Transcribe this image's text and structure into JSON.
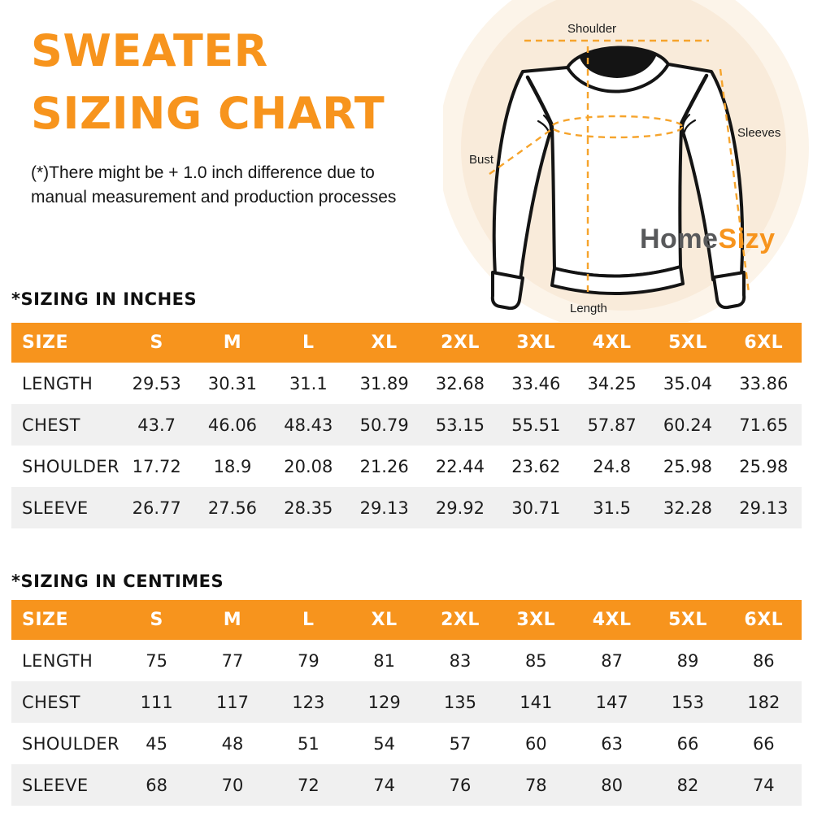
{
  "header": {
    "title_line1": "SWEATER",
    "title_line2": "SIZING CHART",
    "disclaimer_line1": "(*)There might be + 1.0 inch difference due to",
    "disclaimer_line2": "manual measurement and production processes"
  },
  "diagram": {
    "labels": {
      "shoulder": "Shoulder",
      "sleeves": "Sleeves",
      "bust": "Bust",
      "length": "Length"
    }
  },
  "logo": {
    "part1": "Home",
    "part2": "Sizy"
  },
  "colors": {
    "accent_orange": "#F7941D",
    "dash_orange": "#F6A42C",
    "stripe_gray": "#F0F0F0",
    "logo_gray": "#58595B",
    "circle_inner": "#F9EBDA",
    "circle_outer": "#FCF4E9"
  },
  "tables": [
    {
      "title": "*SIZING IN INCHES",
      "columns": [
        "SIZE",
        "S",
        "M",
        "L",
        "XL",
        "2XL",
        "3XL",
        "4XL",
        "5XL",
        "6XL"
      ],
      "rows": [
        {
          "label": "LENGTH",
          "values": [
            "29.53",
            "30.31",
            "31.1",
            "31.89",
            "32.68",
            "33.46",
            "34.25",
            "35.04",
            "33.86"
          ]
        },
        {
          "label": "CHEST",
          "values": [
            "43.7",
            "46.06",
            "48.43",
            "50.79",
            "53.15",
            "55.51",
            "57.87",
            "60.24",
            "71.65"
          ]
        },
        {
          "label": "SHOULDER",
          "values": [
            "17.72",
            "18.9",
            "20.08",
            "21.26",
            "22.44",
            "23.62",
            "24.8",
            "25.98",
            "25.98"
          ]
        },
        {
          "label": "SLEEVE",
          "values": [
            "26.77",
            "27.56",
            "28.35",
            "29.13",
            "29.92",
            "30.71",
            "31.5",
            "32.28",
            "29.13"
          ]
        }
      ]
    },
    {
      "title": "*SIZING IN CENTIMES",
      "columns": [
        "SIZE",
        "S",
        "M",
        "L",
        "XL",
        "2XL",
        "3XL",
        "4XL",
        "5XL",
        "6XL"
      ],
      "rows": [
        {
          "label": "LENGTH",
          "values": [
            "75",
            "77",
            "79",
            "81",
            "83",
            "85",
            "87",
            "89",
            "86"
          ]
        },
        {
          "label": "CHEST",
          "values": [
            "111",
            "117",
            "123",
            "129",
            "135",
            "141",
            "147",
            "153",
            "182"
          ]
        },
        {
          "label": "SHOULDER",
          "values": [
            "45",
            "48",
            "51",
            "54",
            "57",
            "60",
            "63",
            "66",
            "66"
          ]
        },
        {
          "label": "SLEEVE",
          "values": [
            "68",
            "70",
            "72",
            "74",
            "76",
            "78",
            "80",
            "82",
            "74"
          ]
        }
      ]
    }
  ]
}
